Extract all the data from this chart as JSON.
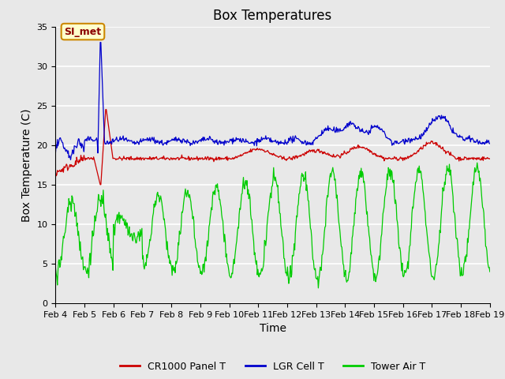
{
  "title": "Box Temperatures",
  "ylabel": "Box Temperature (C)",
  "xlabel": "Time",
  "ylim": [
    0,
    35
  ],
  "xlim": [
    0,
    15
  ],
  "yticks": [
    0,
    5,
    10,
    15,
    20,
    25,
    30,
    35
  ],
  "xtick_positions": [
    0,
    1,
    2,
    3,
    4,
    5,
    6,
    7,
    8,
    9,
    10,
    11,
    12,
    13,
    14,
    15
  ],
  "xtick_labels": [
    "Feb 4",
    "Feb 5",
    "Feb 6",
    "Feb 7",
    "Feb 8",
    "Feb 9",
    "Feb 10",
    "Feb 11",
    "Feb 12",
    "Feb 13",
    "Feb 14",
    "Feb 15",
    "Feb 16",
    "Feb 17",
    "Feb 18",
    "Feb 19"
  ],
  "plot_bg_color": "#e8e8e8",
  "grid_color": "#ffffff",
  "legend_labels": [
    "CR1000 Panel T",
    "LGR Cell T",
    "Tower Air T"
  ],
  "legend_colors": [
    "#cc0000",
    "#0000cc",
    "#00cc00"
  ],
  "annotation_text": "SI_met",
  "annotation_box_color": "#ffffcc",
  "annotation_border_color": "#cc8800",
  "title_fontsize": 12,
  "axis_label_fontsize": 10,
  "tick_fontsize": 8
}
